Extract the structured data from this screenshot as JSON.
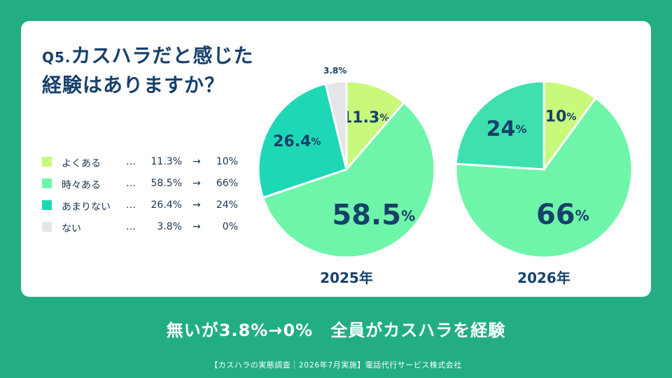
{
  "title": {
    "prefix": "Q5.",
    "line1": "カスハラだと感じた",
    "line2": "経験はありますか？"
  },
  "legend": {
    "dots": "…",
    "arrow": "→",
    "items": [
      {
        "label": "よくある",
        "old": "11.3%",
        "new": "10%",
        "color": "#c8f97a"
      },
      {
        "label": "時々ある",
        "old": "58.5%",
        "new": "66%",
        "color": "#6ff5a9"
      },
      {
        "label": "あまりない",
        "old": "26.4%",
        "new": "24%",
        "color": "#1ed8b5"
      },
      {
        "label": "ない",
        "old": "3.8%",
        "new": "0%",
        "color": "#e3e5e8"
      }
    ]
  },
  "chart_data": [
    {
      "type": "pie",
      "caption": "2025年",
      "unit": "%",
      "slices": [
        {
          "label": "よくある",
          "value": 11.3,
          "display": "11.3",
          "color": "#c8f97a"
        },
        {
          "label": "時々ある",
          "value": 58.5,
          "display": "58.5",
          "color": "#6ff5a9"
        },
        {
          "label": "あまりない",
          "value": 26.4,
          "display": "26.4",
          "color": "#1ed8b5"
        },
        {
          "label": "ない",
          "value": 3.8,
          "display": "3.8%",
          "color": "#e3e5e8"
        }
      ]
    },
    {
      "type": "pie",
      "caption": "2026年",
      "unit": "%",
      "slices": [
        {
          "label": "よくある",
          "value": 10,
          "display": "10",
          "color": "#c8f97a"
        },
        {
          "label": "時々ある",
          "value": 66,
          "display": "66",
          "color": "#6ff5a9"
        },
        {
          "label": "あまりない",
          "value": 24,
          "display": "24",
          "color": "#3de0ae"
        },
        {
          "label": "ない",
          "value": 0,
          "display": "",
          "color": "#e3e5e8"
        }
      ]
    }
  ],
  "headline": "無いが3.8%→0%　全員がカスハラを経験",
  "footer": "【カスハラの実態調査｜2026年7月実施】電話代行サービス株式会社"
}
